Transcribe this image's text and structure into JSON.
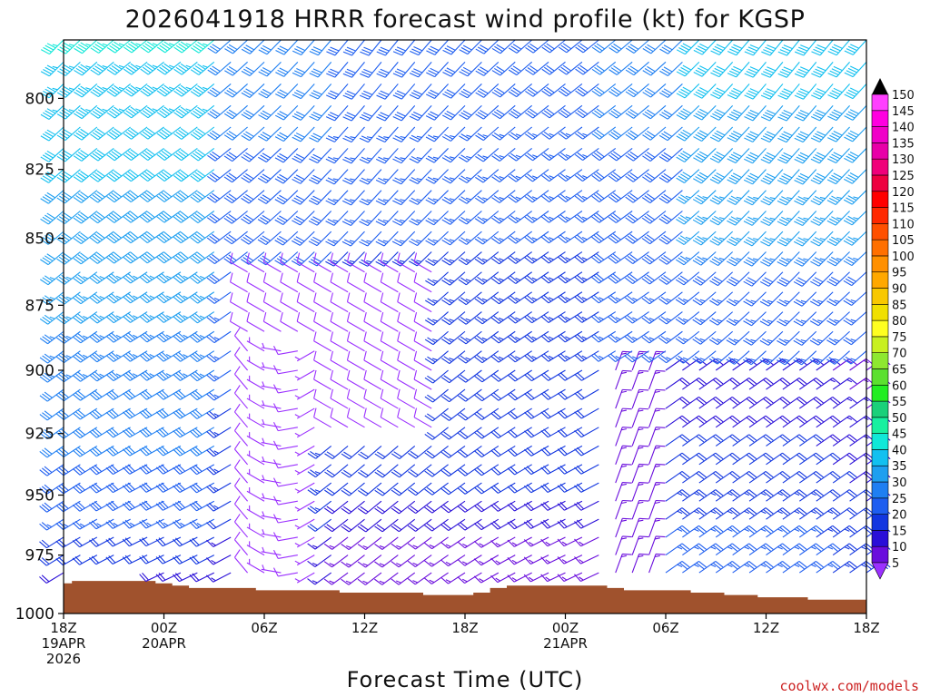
{
  "chart_data": {
    "type": "wind-barb time-height profile",
    "title": "2026041918 HRRR forecast wind profile (kt) for KGSP",
    "xlabel": "Forecast Time (UTC)",
    "ylabel": "",
    "credit": "coolwx.com/models",
    "y_axis": {
      "units": "hPa",
      "range": [
        1000,
        780
      ],
      "ticks": [
        "800",
        "825",
        "850",
        "875",
        "900",
        "925",
        "950",
        "975",
        "1000"
      ]
    },
    "x_axis": {
      "units": "forecast hour",
      "range": [
        0,
        48
      ],
      "ticks": [
        {
          "hour": 0,
          "label": "18Z",
          "date": "19APR",
          "year": "2026"
        },
        {
          "hour": 6,
          "label": "00Z",
          "date": "20APR",
          "year": ""
        },
        {
          "hour": 12,
          "label": "06Z",
          "date": "",
          "year": ""
        },
        {
          "hour": 18,
          "label": "12Z",
          "date": "",
          "year": ""
        },
        {
          "hour": 24,
          "label": "18Z",
          "date": "",
          "year": ""
        },
        {
          "hour": 30,
          "label": "00Z",
          "date": "21APR",
          "year": ""
        },
        {
          "hour": 36,
          "label": "06Z",
          "date": "",
          "year": ""
        },
        {
          "hour": 42,
          "label": "12Z",
          "date": "",
          "year": ""
        },
        {
          "hour": 48,
          "label": "18Z",
          "date": "",
          "year": ""
        }
      ]
    },
    "colorbar": {
      "units": "kt",
      "levels": [
        "5",
        "10",
        "15",
        "20",
        "25",
        "30",
        "35",
        "40",
        "45",
        "50",
        "55",
        "60",
        "65",
        "70",
        "75",
        "80",
        "85",
        "90",
        "95",
        "100",
        "105",
        "110",
        "115",
        "120",
        "125",
        "130",
        "135",
        "140",
        "145",
        "150"
      ],
      "colors": [
        "#9b30ff",
        "#6a0ddd",
        "#2a0fd8",
        "#1236e0",
        "#1e5ef0",
        "#1f7ff2",
        "#1e9ff0",
        "#12c0f0",
        "#10e8d8",
        "#17f0a0",
        "#1ad07a",
        "#22ee22",
        "#5ce030",
        "#8ee830",
        "#c8f020",
        "#ffff20",
        "#f0e000",
        "#f8c800",
        "#ffa800",
        "#ff9000",
        "#ff7000",
        "#ff5000",
        "#ff2800",
        "#ff0000",
        "#ee0040",
        "#f0007a",
        "#e800a8",
        "#f000c8",
        "#ff00e0",
        "#ff40ff"
      ]
    },
    "surface_pressure": {
      "hours": [
        0,
        1,
        2,
        3,
        4,
        5,
        6,
        7,
        8,
        9,
        10,
        11,
        12,
        13,
        14,
        15,
        16,
        17,
        18,
        19,
        20,
        21,
        22,
        23,
        24,
        25,
        26,
        27,
        28,
        29,
        30,
        31,
        32,
        33,
        34,
        35,
        36,
        37,
        38,
        39,
        40,
        41,
        42,
        43,
        44,
        45,
        46,
        47,
        48
      ],
      "hPa": [
        987,
        986,
        986,
        986,
        986,
        986,
        987,
        988,
        989,
        989,
        989,
        989,
        990,
        990,
        990,
        990,
        990,
        991,
        991,
        991,
        991,
        991,
        992,
        992,
        992,
        991,
        989,
        988,
        988,
        988,
        988,
        988,
        988,
        989,
        990,
        990,
        990,
        990,
        991,
        991,
        992,
        992,
        993,
        993,
        993,
        994,
        994,
        994,
        994
      ]
    },
    "barb_levels_hPa": [
      780,
      787.5,
      795,
      802.5,
      810,
      817.5,
      825,
      832.5,
      840,
      847.5,
      855,
      862.5,
      870,
      877.5,
      885,
      892.5,
      900,
      907.5,
      915,
      922.5,
      930,
      937.5,
      945,
      952.5,
      960,
      967.5,
      975,
      982.5
    ],
    "barb_hours": [
      0,
      1,
      2,
      3,
      4,
      5,
      6,
      7,
      8,
      9,
      10,
      11,
      12,
      13,
      14,
      15,
      16,
      17,
      18,
      19,
      20,
      21,
      22,
      23,
      24,
      25,
      26,
      27,
      28,
      29,
      30,
      31,
      32,
      33,
      34,
      35,
      36,
      37,
      38,
      39,
      40,
      41,
      42,
      43,
      44,
      45,
      46,
      47,
      48
    ],
    "wind_description": "Southwesterly to westerly flow 20-40 kt aloft; light (5-15 kt) winds near the surface in the middle of the period; northeasterly 15-25 kt low-level flow after 06Z 21APR."
  }
}
